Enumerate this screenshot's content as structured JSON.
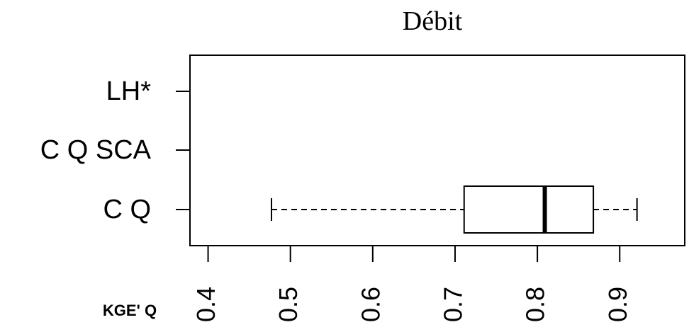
{
  "chart_data": {
    "type": "boxplot",
    "title": "Débit",
    "xlabel": "KGE' Q",
    "categories": [
      "C Q",
      "C Q SCA",
      "LH*"
    ],
    "boxes": [
      {
        "whislo": 0.477,
        "q1": 0.711,
        "med": 0.809,
        "q3": 0.868,
        "whishi": 0.921
      },
      null,
      null
    ],
    "xlim": [
      0.378,
      0.979
    ],
    "xticks": [
      0.4,
      0.5,
      0.6,
      0.7,
      0.8,
      0.9
    ]
  }
}
